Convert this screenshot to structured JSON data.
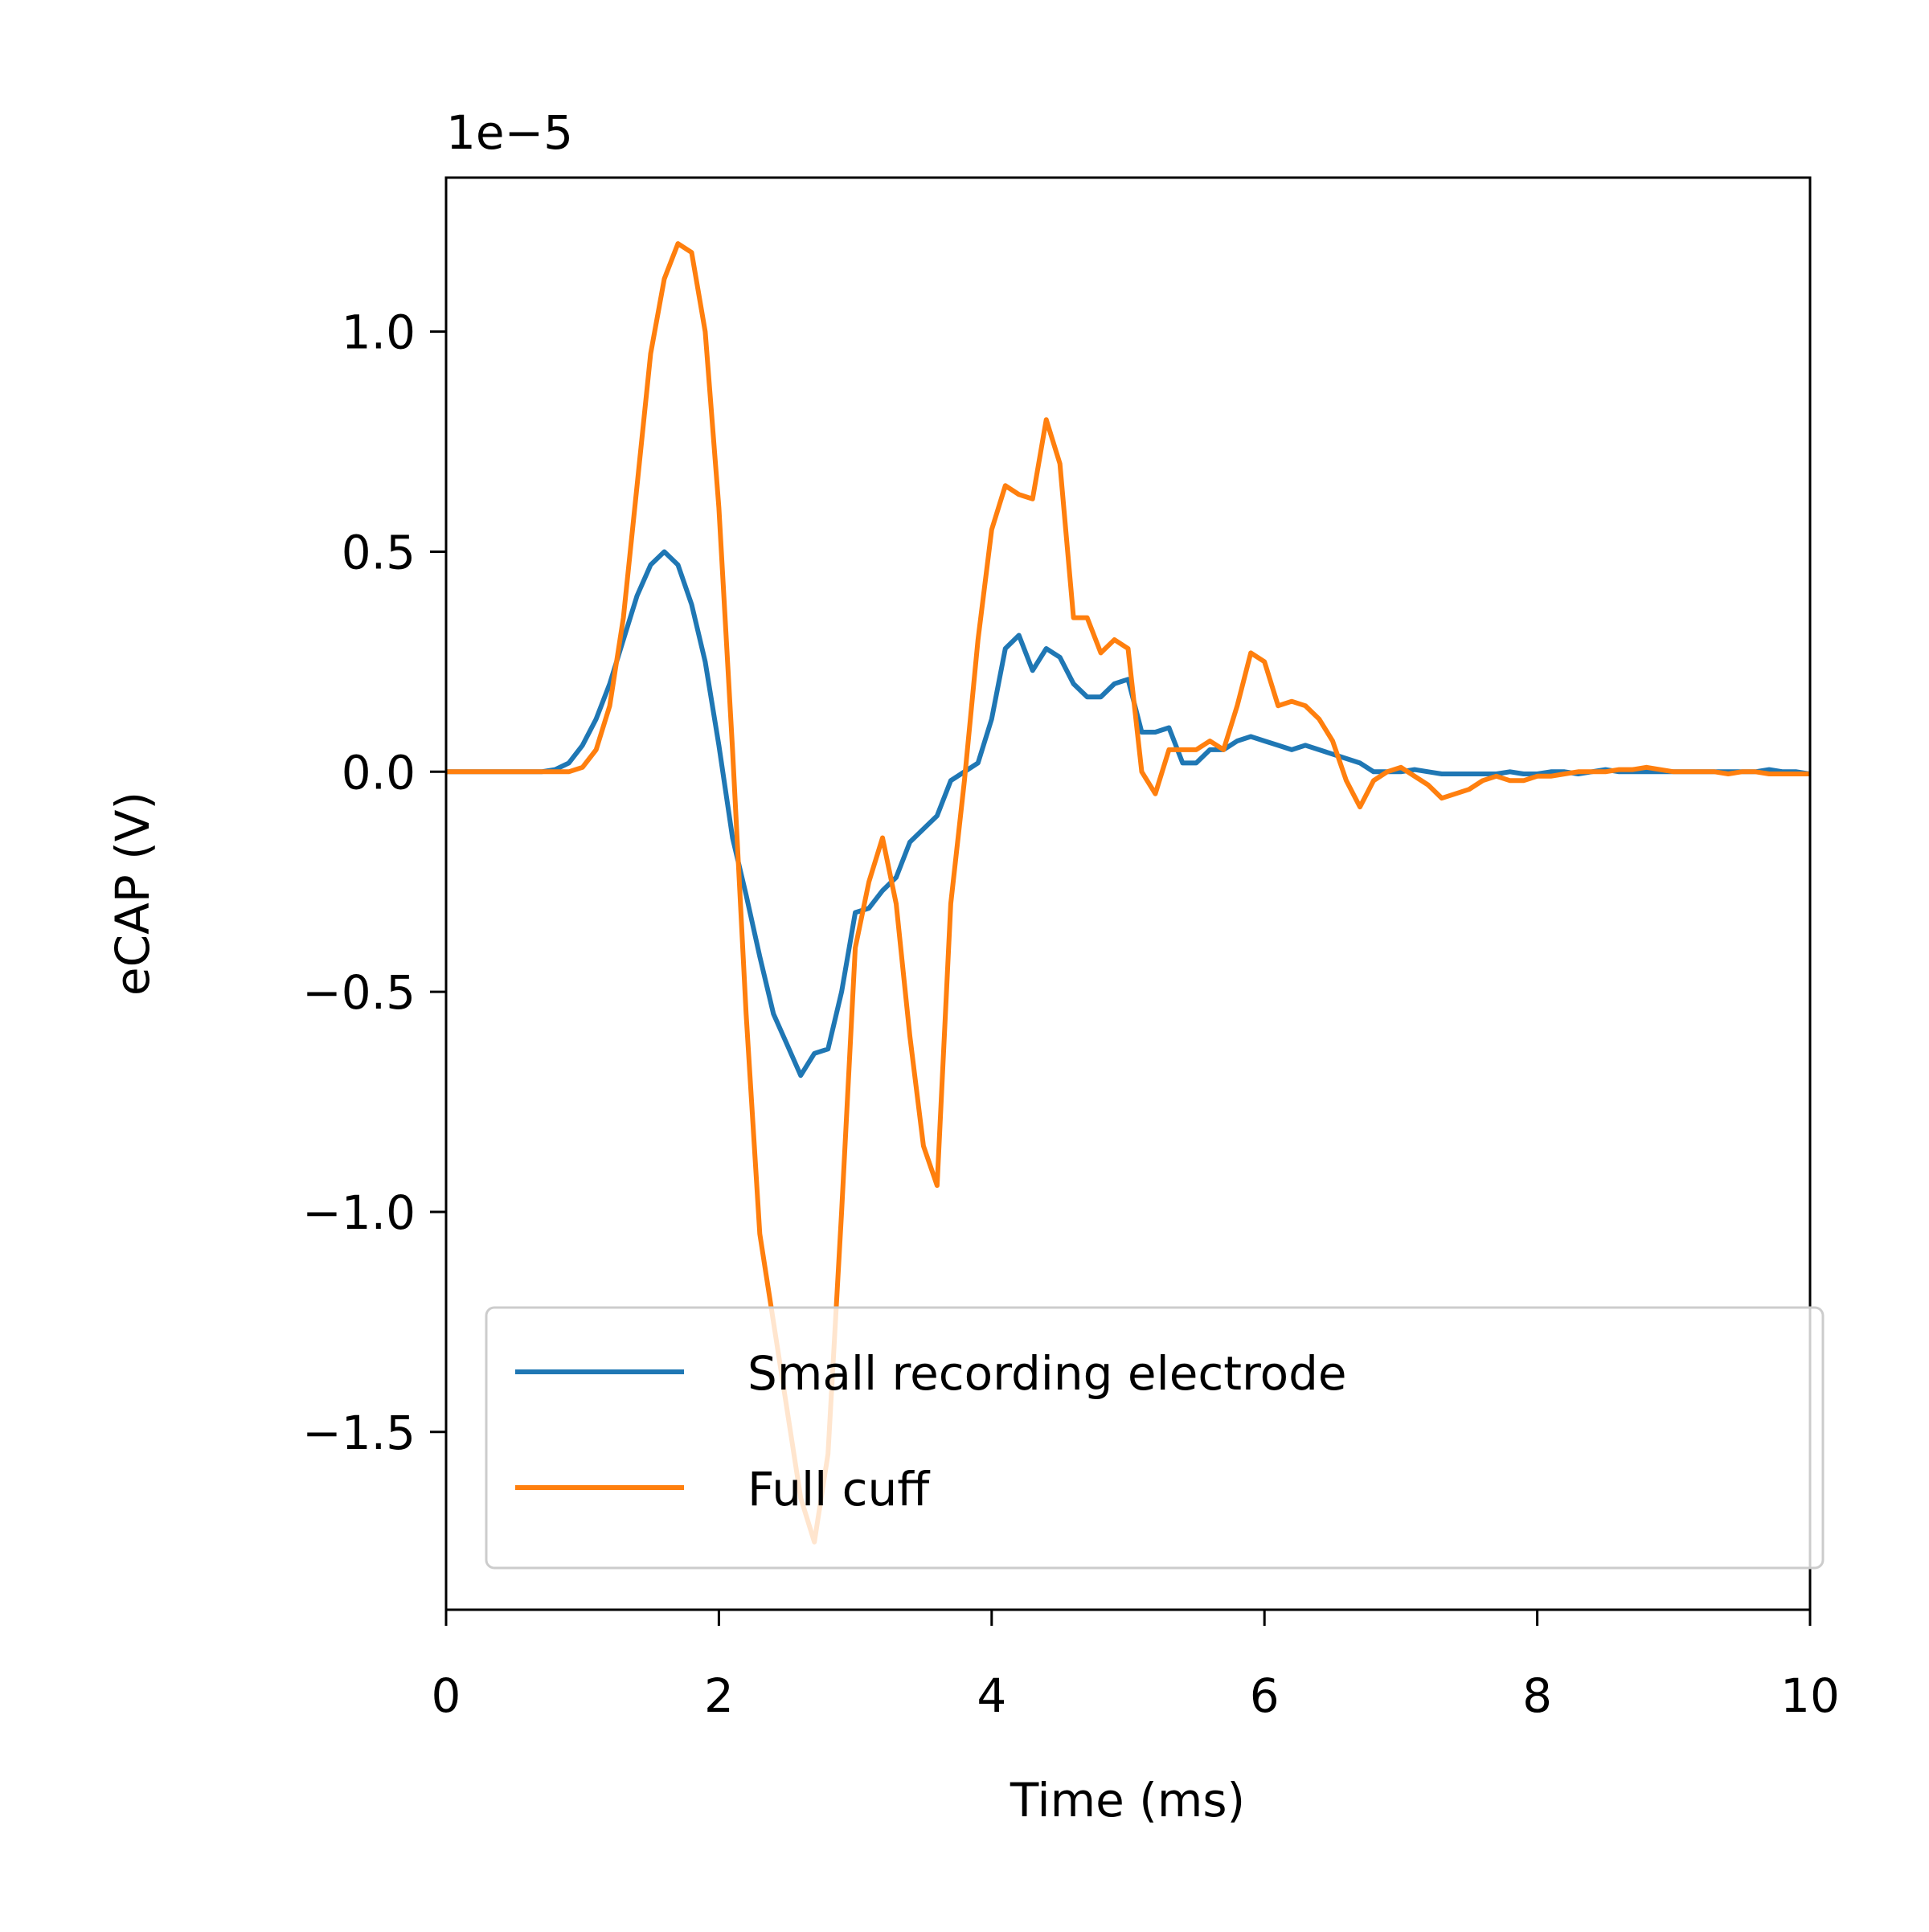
{
  "chart_data": {
    "type": "line",
    "offset_text": "1e−5",
    "xlabel": "Time (ms)",
    "ylabel": "eCAP (V)",
    "x": [
      0,
      0.1,
      0.2,
      0.3,
      0.4,
      0.5,
      0.6,
      0.7,
      0.8,
      0.9,
      1,
      1.1,
      1.2,
      1.3,
      1.4,
      1.5,
      1.6,
      1.7,
      1.8,
      1.9,
      2,
      2.1,
      2.2,
      2.3,
      2.4,
      2.5,
      2.6,
      2.7,
      2.8,
      2.9,
      3,
      3.1,
      3.2,
      3.3,
      3.4,
      3.5,
      3.6,
      3.7,
      3.8,
      3.9,
      4,
      4.1,
      4.2,
      4.3,
      4.4,
      4.5,
      4.6,
      4.7,
      4.8,
      4.9,
      5,
      5.1,
      5.2,
      5.3,
      5.4,
      5.5,
      5.6,
      5.7,
      5.8,
      5.9,
      6,
      6.1,
      6.2,
      6.3,
      6.4,
      6.5,
      6.6,
      6.7,
      6.8,
      6.9,
      7,
      7.1,
      7.2,
      7.3,
      7.4,
      7.5,
      7.6,
      7.7,
      7.8,
      7.9,
      8,
      8.1,
      8.2,
      8.3,
      8.4,
      8.5,
      8.6,
      8.7,
      8.8,
      8.9,
      9,
      9.1,
      9.2,
      9.3,
      9.4,
      9.5,
      9.6,
      9.7,
      9.8,
      9.9,
      10
    ],
    "series": [
      {
        "name": "Small recording electrode",
        "color": "#1f77b4",
        "values": [
          0,
          0,
          0,
          0,
          0,
          0,
          0,
          0,
          0.005,
          0.02,
          0.06,
          0.12,
          0.2,
          0.3,
          0.4,
          0.47,
          0.5,
          0.47,
          0.38,
          0.25,
          0.06,
          -0.15,
          -0.28,
          -0.42,
          -0.55,
          -0.62,
          -0.69,
          -0.64,
          -0.63,
          -0.5,
          -0.32,
          -0.31,
          -0.27,
          -0.24,
          -0.16,
          -0.13,
          -0.1,
          -0.02,
          0,
          0.02,
          0.12,
          0.28,
          0.31,
          0.23,
          0.28,
          0.26,
          0.2,
          0.17,
          0.17,
          0.2,
          0.21,
          0.09,
          0.09,
          0.1,
          0.02,
          0.02,
          0.05,
          0.05,
          0.07,
          0.08,
          0.07,
          0.06,
          0.05,
          0.06,
          0.05,
          0.04,
          0.03,
          0.02,
          0,
          0,
          0,
          0.005,
          0,
          -0.005,
          -0.005,
          -0.005,
          -0.005,
          -0.005,
          0,
          -0.005,
          -0.005,
          0,
          0,
          -0.005,
          0,
          0.005,
          0,
          0,
          0,
          0,
          0,
          0,
          0,
          0,
          0,
          0,
          0,
          0.005,
          0,
          0,
          -0.005
        ]
      },
      {
        "name": "Full cuff",
        "color": "#ff7f0e",
        "values": [
          0,
          0,
          0,
          0,
          0,
          0,
          0,
          0,
          0,
          0,
          0.01,
          0.05,
          0.15,
          0.35,
          0.65,
          0.95,
          1.12,
          1.2,
          1.18,
          1.0,
          0.6,
          0.05,
          -0.55,
          -1.05,
          -1.25,
          -1.45,
          -1.65,
          -1.75,
          -1.55,
          -1.0,
          -0.4,
          -0.25,
          -0.15,
          -0.3,
          -0.6,
          -0.85,
          -0.94,
          -0.3,
          -0.02,
          0.3,
          0.55,
          0.65,
          0.63,
          0.62,
          0.8,
          0.7,
          0.35,
          0.35,
          0.27,
          0.3,
          0.28,
          0,
          -0.05,
          0.05,
          0.05,
          0.05,
          0.07,
          0.05,
          0.15,
          0.27,
          0.25,
          0.15,
          0.16,
          0.15,
          0.12,
          0.07,
          -0.02,
          -0.08,
          -0.02,
          0,
          0.01,
          -0.01,
          -0.03,
          -0.06,
          -0.05,
          -0.04,
          -0.02,
          -0.01,
          -0.02,
          -0.02,
          -0.01,
          -0.01,
          -0.005,
          0,
          0,
          0,
          0.005,
          0.005,
          0.01,
          0.005,
          0,
          0,
          0,
          0,
          -0.005,
          0,
          0,
          -0.005,
          -0.005,
          -0.005,
          -0.005
        ]
      }
    ],
    "xlim": [
      0,
      10
    ],
    "xticks": [
      0,
      2,
      4,
      6,
      8,
      10
    ],
    "ylim": [
      -1.904,
      1.35
    ],
    "yticks": [
      {
        "value": -1.5,
        "label": "−1.5"
      },
      {
        "value": -1.0,
        "label": "−1.0"
      },
      {
        "value": -0.5,
        "label": "−0.5"
      },
      {
        "value": 0,
        "label": "0.0"
      },
      {
        "value": 0.5,
        "label": "0.5"
      },
      {
        "value": 1.0,
        "label": "1.0"
      }
    ],
    "legend": "lower right"
  }
}
